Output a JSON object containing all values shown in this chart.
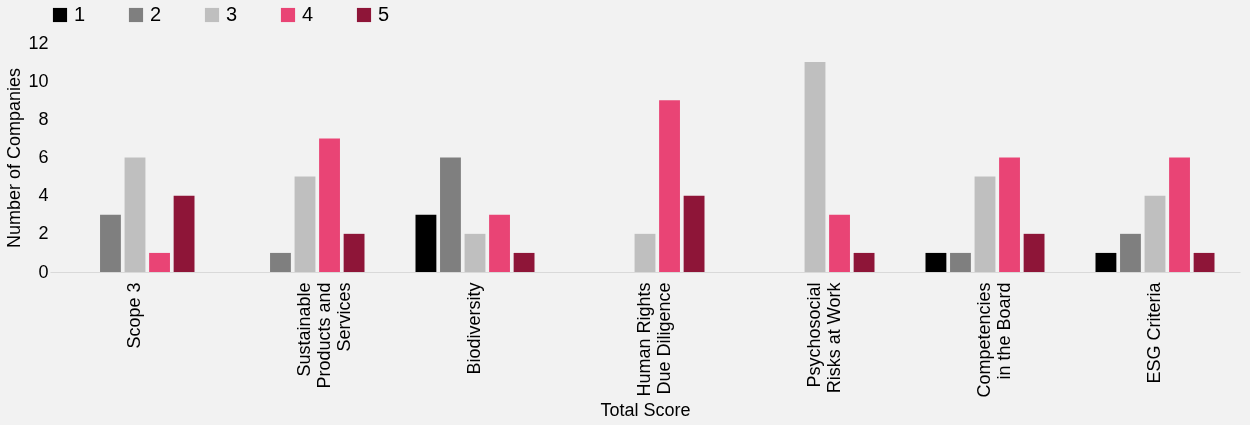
{
  "chart_data": {
    "type": "bar",
    "xlabel": "Total Score",
    "ylabel": "Number of Companies",
    "categories": [
      "Scope 3",
      "Sustainable Products and Services",
      "Biodiversity",
      "Human Rights Due Diligence",
      "Psychosocial Risks at Work",
      "Competencies in the Board",
      "ESG Criteria"
    ],
    "series": [
      {
        "name": "1",
        "color": "#000000",
        "values": [
          0,
          0,
          3,
          0,
          0,
          1,
          1
        ]
      },
      {
        "name": "2",
        "color": "#7f7f7f",
        "values": [
          3,
          1,
          6,
          0,
          0,
          1,
          2
        ]
      },
      {
        "name": "3",
        "color": "#bfbfbf",
        "values": [
          6,
          5,
          2,
          2,
          11,
          5,
          4
        ]
      },
      {
        "name": "4",
        "color": "#e94475",
        "values": [
          1,
          7,
          3,
          9,
          3,
          6,
          6
        ]
      },
      {
        "name": "5",
        "color": "#8e1538",
        "values": [
          4,
          2,
          1,
          4,
          1,
          2,
          1
        ]
      }
    ],
    "ylim": [
      0,
      12
    ],
    "yticks": [
      0,
      2,
      4,
      6,
      8,
      10,
      12
    ],
    "grid": false,
    "legend": "top"
  }
}
